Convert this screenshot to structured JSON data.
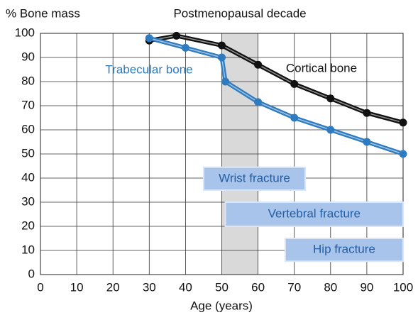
{
  "chart_data": {
    "type": "line",
    "ylabel": "% Bone mass",
    "xlabel": "Age (years)",
    "shaded_region": {
      "label": "Postmenopausal decade",
      "x_range": [
        50,
        60
      ],
      "color": "#d9d9d9"
    },
    "series": [
      {
        "name": "Cortical bone",
        "color": "#111111",
        "x": [
          30,
          37.5,
          50,
          60,
          70,
          80,
          90,
          100
        ],
        "values": [
          97,
          99,
          95,
          87,
          79,
          73,
          67,
          63
        ]
      },
      {
        "name": "Trabecular bone",
        "color": "#2f7bbf",
        "x": [
          30,
          40,
          50,
          51,
          60,
          70,
          80,
          90,
          100
        ],
        "values": [
          98,
          94,
          90,
          80,
          71.5,
          65,
          60,
          55,
          50
        ]
      }
    ],
    "annotations": [
      {
        "text": "Wrist fracture",
        "x_range": [
          45,
          73
        ],
        "y_range": [
          35,
          44.5
        ]
      },
      {
        "text": "Vertebral fracture",
        "x_range": [
          51,
          100
        ],
        "y_range": [
          20,
          30
        ]
      },
      {
        "text": "Hip fracture",
        "x_range": [
          67.5,
          100
        ],
        "y_range": [
          5.5,
          15
        ]
      }
    ],
    "box_color": "#a9c4ea",
    "xlim": [
      0,
      100
    ],
    "xticks": [
      0,
      10,
      20,
      30,
      40,
      50,
      60,
      70,
      80,
      90,
      100
    ],
    "ylim": [
      0,
      100
    ],
    "yticks": [
      0,
      10,
      20,
      30,
      40,
      50,
      60,
      70,
      80,
      90,
      100
    ],
    "grid": true
  }
}
